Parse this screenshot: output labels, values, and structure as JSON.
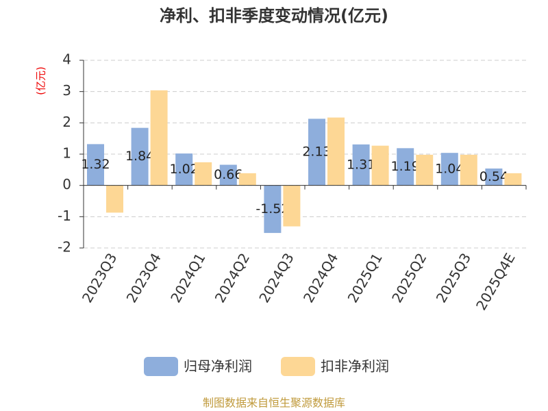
{
  "chart_data": {
    "type": "bar",
    "title": "净利、扣非季度变动情况(亿元)",
    "y_label": "(亿元)",
    "categories": [
      "2023Q3",
      "2023Q4",
      "2024Q1",
      "2024Q2",
      "2024Q3",
      "2024Q4",
      "2025Q1",
      "2025Q2",
      "2025Q3",
      "2025Q4E"
    ],
    "series": [
      {
        "name": "归母净利润",
        "color": "#8eaedc",
        "values": [
          1.32,
          1.84,
          1.02,
          0.66,
          -1.52,
          2.13,
          1.31,
          1.19,
          1.04,
          0.54
        ]
      },
      {
        "name": "扣非净利润",
        "color": "#fdd795",
        "values": [
          -0.87,
          3.04,
          0.74,
          0.39,
          -1.31,
          2.17,
          1.27,
          0.98,
          0.98,
          0.39
        ]
      }
    ],
    "ylim": [
      -2,
      4
    ],
    "yticks": [
      -2,
      -1,
      0,
      1,
      2,
      3,
      4
    ],
    "grid": true,
    "source": "制图数据来自恒生聚源数据库"
  }
}
